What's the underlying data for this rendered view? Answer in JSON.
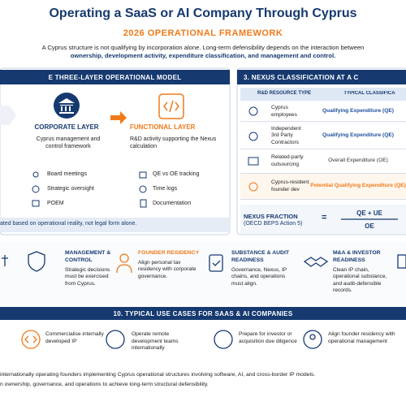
{
  "header": {
    "title": "Operating a SaaS or AI Company Through Cyprus",
    "subtitle": "2026 OPERATIONAL FRAMEWORK",
    "intro": "A Cyprus structure is not qualifying by incorporation alone. Long-term defensibility depends on the interaction between",
    "intro_bold": "ownership, development activity, expenditure classification, and management and control."
  },
  "operational_model": {
    "heading": "E THREE-LAYER OPERATIONAL MODEL",
    "layers": [
      {
        "title": "CORPORATE LAYER",
        "description": "Cyprus management and control framework",
        "items": [
          "Board meetings",
          "Strategic oversight",
          "POEM"
        ]
      },
      {
        "title": "FUNCTIONAL LAYER",
        "description": "R&D activity supporting the Nexus calculation",
        "items": [
          "QE vs OE tracking",
          "Time logs",
          "Documentation"
        ]
      }
    ],
    "note": "ated based on operational reality, not legal form alone."
  },
  "nexus": {
    "heading": "3. NEXUS CLASSIFICATION AT A C",
    "columns": [
      "R&D RESOURCE TYPE",
      "TYPICAL CLASSIFICA"
    ],
    "rows": [
      [
        "Cyprus employees",
        "Qualifying Expenditure (QE)"
      ],
      [
        "Independent 3rd Party Contractors",
        "Qualifying Expenditure (QE)"
      ],
      [
        "Related-party outsourcing",
        "Overall Expenditure (OE)"
      ],
      [
        "Cyprus-resident founder dev",
        "Potential Qualifying Expenditure (QE)"
      ]
    ],
    "fraction": {
      "label": "NEXUS FRACTION",
      "source": "(OECD BEPS Action 5)",
      "equals": "=",
      "numerator": "QE + UE",
      "denominator": "OE"
    }
  },
  "pillars": [
    {
      "title": "MANAGEMENT & CONTROL",
      "text": "Strategic decisions must be exercised from Cyprus."
    },
    {
      "title": "FOUNDER RESIDENCY",
      "text": "Align personal tax residency with corporate governance."
    },
    {
      "title": "SUBSTANCE & AUDIT READINESS",
      "text": "Governance, Nexus, IP chains, and operations must align."
    },
    {
      "title": "M&A & INVESTOR READINESS",
      "text": "Clean IP chain, operational substance, and audit-defensible records."
    }
  ],
  "use_cases": {
    "heading": "10. TYPICAL USE CASES FOR SAAS & AI COMPANIES",
    "items": [
      "Commercialise internally developed IP",
      "Operate remote development teams internationally",
      "Prepare for investor or acquisition due diligence",
      "Align founder residency with operational management"
    ]
  },
  "footer": [
    "internationally operating founders implementing Cyprus operational structures involving software, AI, and cross-border IP models.",
    "n ownership, governance, and operations to achieve long-term structural defensibility."
  ]
}
